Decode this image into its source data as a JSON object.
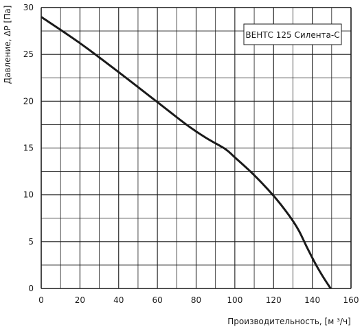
{
  "chart_data": {
    "type": "line",
    "title": "",
    "xlabel": "Производительность, [м ³/ч]",
    "ylabel": "Давление, ΔP [Па]",
    "xlim": [
      0,
      160
    ],
    "ylim": [
      0,
      30
    ],
    "x_ticks": [
      0,
      20,
      40,
      60,
      80,
      100,
      120,
      140,
      160
    ],
    "y_ticks": [
      0,
      5,
      10,
      15,
      20,
      25,
      30
    ],
    "grid": true,
    "legend_position": "top-right",
    "series": [
      {
        "name": "ВЕНТС 125 Силента-С",
        "color": "#1a1a1a",
        "points": [
          [
            0,
            29
          ],
          [
            20,
            26.2
          ],
          [
            40,
            23.1
          ],
          [
            60,
            19.9
          ],
          [
            75,
            17.5
          ],
          [
            85,
            16.1
          ],
          [
            95,
            14.9
          ],
          [
            100,
            14
          ],
          [
            110,
            12.1
          ],
          [
            120,
            9.9
          ],
          [
            128,
            7.8
          ],
          [
            133,
            6.2
          ],
          [
            137,
            4.5
          ],
          [
            142,
            2.5
          ],
          [
            146,
            1.1
          ],
          [
            149.5,
            0
          ]
        ]
      }
    ]
  }
}
